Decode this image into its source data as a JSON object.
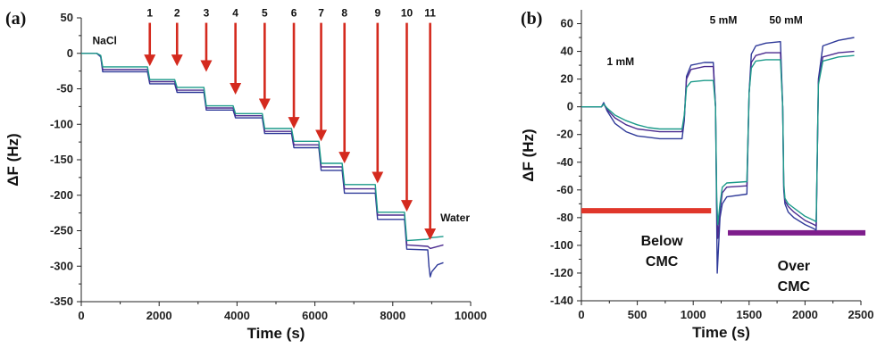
{
  "chart_data": [
    {
      "id": "a",
      "type": "line",
      "panel_label": "(a)",
      "xlabel": "Time (s)",
      "ylabel": "ΔF (Hz)",
      "xlim": [
        0,
        10000
      ],
      "ylim": [
        -350,
        50
      ],
      "xticks": [
        0,
        2000,
        4000,
        6000,
        8000,
        10000
      ],
      "yticks": [
        50,
        0,
        -50,
        -100,
        -150,
        -200,
        -250,
        -300,
        -350
      ],
      "grid": false,
      "series": [
        {
          "color": "#2f3a99",
          "x": [
            0,
            400,
            500,
            550,
            1700,
            1760,
            2400,
            2460,
            3150,
            3210,
            3900,
            3960,
            4650,
            4710,
            5400,
            5460,
            6100,
            6160,
            6700,
            6760,
            7550,
            7610,
            8300,
            8360,
            8900,
            8930,
            8960,
            9000,
            9150,
            9300
          ],
          "y": [
            0,
            0,
            -5,
            -26,
            -26,
            -43,
            -43,
            -55,
            -55,
            -80,
            -80,
            -91,
            -91,
            -113,
            -113,
            -133,
            -133,
            -165,
            -165,
            -197,
            -197,
            -234,
            -234,
            -276,
            -277,
            -300,
            -315,
            -308,
            -298,
            -295
          ]
        },
        {
          "color": "#4b2b8f",
          "x": [
            0,
            400,
            500,
            550,
            1700,
            1760,
            2400,
            2460,
            3150,
            3210,
            3900,
            3960,
            4650,
            4710,
            5400,
            5460,
            6100,
            6160,
            6700,
            6760,
            7550,
            7610,
            8300,
            8360,
            8900,
            8960,
            9300
          ],
          "y": [
            0,
            0,
            -4,
            -23,
            -23,
            -40,
            -40,
            -52,
            -52,
            -77,
            -77,
            -88,
            -88,
            -110,
            -110,
            -129,
            -129,
            -160,
            -160,
            -191,
            -191,
            -228,
            -228,
            -270,
            -272,
            -275,
            -270
          ]
        },
        {
          "color": "#1c9a8a",
          "x": [
            0,
            400,
            500,
            550,
            1700,
            1760,
            2400,
            2460,
            3150,
            3210,
            3900,
            3960,
            4650,
            4710,
            5400,
            5460,
            6100,
            6160,
            6700,
            6760,
            7550,
            7610,
            8300,
            8360,
            8900,
            8960,
            9300
          ],
          "y": [
            0,
            0,
            -3,
            -19,
            -19,
            -37,
            -37,
            -48,
            -48,
            -74,
            -74,
            -85,
            -85,
            -106,
            -106,
            -124,
            -124,
            -155,
            -155,
            -185,
            -185,
            -224,
            -224,
            -264,
            -262,
            -260,
            -258
          ]
        }
      ],
      "annotations": [
        {
          "text": "NaCl",
          "x": 600,
          "y": 13
        },
        {
          "text": "Water",
          "x": 9600,
          "y": -237
        }
      ],
      "arrows": [
        {
          "label": "1",
          "x": 1760,
          "y_top": 43,
          "y_end": -20
        },
        {
          "label": "2",
          "x": 2460,
          "y_top": 43,
          "y_end": -20
        },
        {
          "label": "3",
          "x": 3210,
          "y_top": 43,
          "y_end": -28
        },
        {
          "label": "4",
          "x": 3960,
          "y_top": 43,
          "y_end": -60
        },
        {
          "label": "5",
          "x": 4710,
          "y_top": 43,
          "y_end": -82
        },
        {
          "label": "6",
          "x": 5460,
          "y_top": 43,
          "y_end": -108
        },
        {
          "label": "7",
          "x": 6160,
          "y_top": 43,
          "y_end": -126
        },
        {
          "label": "8",
          "x": 6760,
          "y_top": 43,
          "y_end": -157
        },
        {
          "label": "9",
          "x": 7610,
          "y_top": 43,
          "y_end": -185
        },
        {
          "label": "10",
          "x": 8360,
          "y_top": 43,
          "y_end": -225
        },
        {
          "label": "11",
          "x": 8960,
          "y_top": 43,
          "y_end": -265
        }
      ],
      "arrow_color": "#d42a1e"
    },
    {
      "id": "b",
      "type": "line",
      "panel_label": "(b)",
      "xlabel": "Time (s)",
      "ylabel": "ΔF (Hz)",
      "xlim": [
        0,
        2500
      ],
      "ylim": [
        -140,
        70
      ],
      "xticks": [
        0,
        500,
        1000,
        1500,
        2000,
        2500
      ],
      "yticks": [
        60,
        40,
        20,
        0,
        -20,
        -40,
        -60,
        -80,
        -100,
        -120,
        -140
      ],
      "grid": false,
      "series": [
        {
          "color": "#2f3a99",
          "x": [
            0,
            180,
            200,
            230,
            300,
            400,
            500,
            600,
            700,
            800,
            900,
            920,
            940,
            980,
            1100,
            1180,
            1200,
            1210,
            1215,
            1240,
            1260,
            1300,
            1480,
            1500,
            1520,
            1560,
            1650,
            1780,
            1800,
            1810,
            1820,
            1850,
            1900,
            2000,
            2080,
            2100,
            2120,
            2160,
            2300,
            2440
          ],
          "y": [
            0,
            0,
            3,
            -3,
            -12,
            -18,
            -21,
            -22,
            -23,
            -23,
            -23,
            -10,
            22,
            30,
            32,
            32,
            0,
            -80,
            -120,
            -80,
            -70,
            -65,
            -63,
            10,
            38,
            44,
            46,
            47,
            0,
            -60,
            -70,
            -76,
            -80,
            -85,
            -88,
            -89,
            20,
            44,
            48,
            50
          ]
        },
        {
          "color": "#4b2b8f",
          "x": [
            0,
            180,
            200,
            230,
            300,
            400,
            500,
            600,
            700,
            800,
            900,
            920,
            940,
            980,
            1100,
            1180,
            1200,
            1210,
            1220,
            1240,
            1260,
            1300,
            1480,
            1500,
            1520,
            1560,
            1650,
            1780,
            1800,
            1810,
            1820,
            1850,
            1900,
            2000,
            2080,
            2100,
            2120,
            2160,
            2300,
            2440
          ],
          "y": [
            0,
            0,
            2,
            -2,
            -8,
            -13,
            -16,
            -17,
            -18,
            -18,
            -18,
            -8,
            20,
            27,
            29,
            29,
            0,
            -70,
            -95,
            -75,
            -62,
            -58,
            -57,
            10,
            32,
            37,
            39,
            39,
            0,
            -58,
            -68,
            -72,
            -76,
            -82,
            -85,
            -86,
            18,
            36,
            39,
            40
          ]
        },
        {
          "color": "#1c9a8a",
          "x": [
            0,
            180,
            200,
            230,
            300,
            400,
            500,
            600,
            700,
            800,
            900,
            920,
            940,
            980,
            1100,
            1180,
            1200,
            1210,
            1220,
            1240,
            1260,
            1300,
            1480,
            1500,
            1520,
            1560,
            1650,
            1780,
            1800,
            1810,
            1820,
            1850,
            1900,
            2000,
            2080,
            2100,
            2120,
            2160,
            2300,
            2440
          ],
          "y": [
            0,
            0,
            2,
            -1,
            -6,
            -10,
            -13,
            -15,
            -16,
            -16,
            -16,
            -6,
            14,
            18,
            19,
            19,
            0,
            -65,
            -85,
            -70,
            -58,
            -55,
            -54,
            10,
            28,
            33,
            34,
            34,
            0,
            -55,
            -66,
            -70,
            -73,
            -79,
            -82,
            -83,
            16,
            33,
            36,
            37
          ]
        }
      ],
      "annotations": [
        {
          "text": "1 mM",
          "x": 350,
          "y": 30,
          "size": "small"
        },
        {
          "text": "5 mM",
          "x": 1270,
          "y": 60,
          "size": "small"
        },
        {
          "text": "50 mM",
          "x": 1830,
          "y": 60,
          "size": "small"
        },
        {
          "text": "Below",
          "x": 720,
          "y": -100,
          "size": "big"
        },
        {
          "text": "CMC",
          "x": 720,
          "y": -115,
          "size": "big"
        },
        {
          "text": "Over",
          "x": 1900,
          "y": -118,
          "size": "big"
        },
        {
          "text": "CMC",
          "x": 1900,
          "y": -133,
          "size": "big"
        }
      ],
      "bars": [
        {
          "color": "#e0362a",
          "x1": 0,
          "x2": 1160,
          "y": -75
        },
        {
          "color": "#7e1d8c",
          "x1": 1310,
          "x2": 2540,
          "y": -91
        }
      ]
    }
  ]
}
